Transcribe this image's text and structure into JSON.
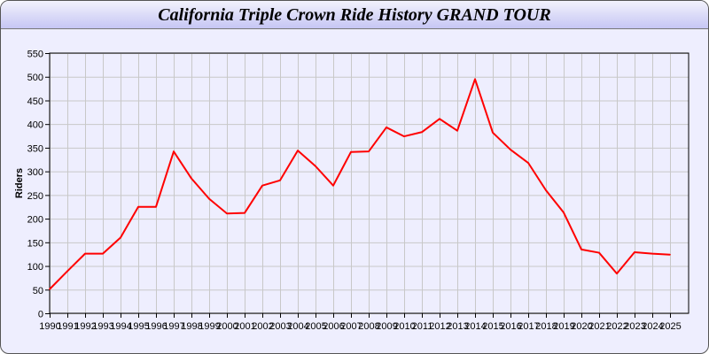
{
  "chart_data": {
    "type": "line",
    "title": "California Triple Crown Ride History GRAND TOUR",
    "xlabel": "",
    "ylabel": "Riders",
    "ylim": [
      0,
      550
    ],
    "yticks": [
      0,
      50,
      100,
      150,
      200,
      250,
      300,
      350,
      400,
      450,
      500,
      550
    ],
    "grid": true,
    "line_color": "#ff0000",
    "x": [
      1990,
      1991,
      1992,
      1993,
      1994,
      1995,
      1996,
      1997,
      1998,
      1999,
      2000,
      2001,
      2002,
      2003,
      2004,
      2005,
      2006,
      2007,
      2008,
      2009,
      2010,
      2011,
      2012,
      2013,
      2014,
      2015,
      2016,
      2017,
      2018,
      2019,
      2020,
      2021,
      2022,
      2023,
      2024,
      2025
    ],
    "series": [
      {
        "values": [
          51,
          89,
          126,
          126,
          160,
          225,
          225,
          342,
          285,
          242,
          211,
          212,
          270,
          281,
          344,
          311,
          270,
          341,
          342,
          393,
          374,
          383,
          411,
          386,
          495,
          382,
          346,
          318,
          260,
          213,
          135,
          128,
          84,
          129,
          126,
          124
        ]
      }
    ]
  }
}
